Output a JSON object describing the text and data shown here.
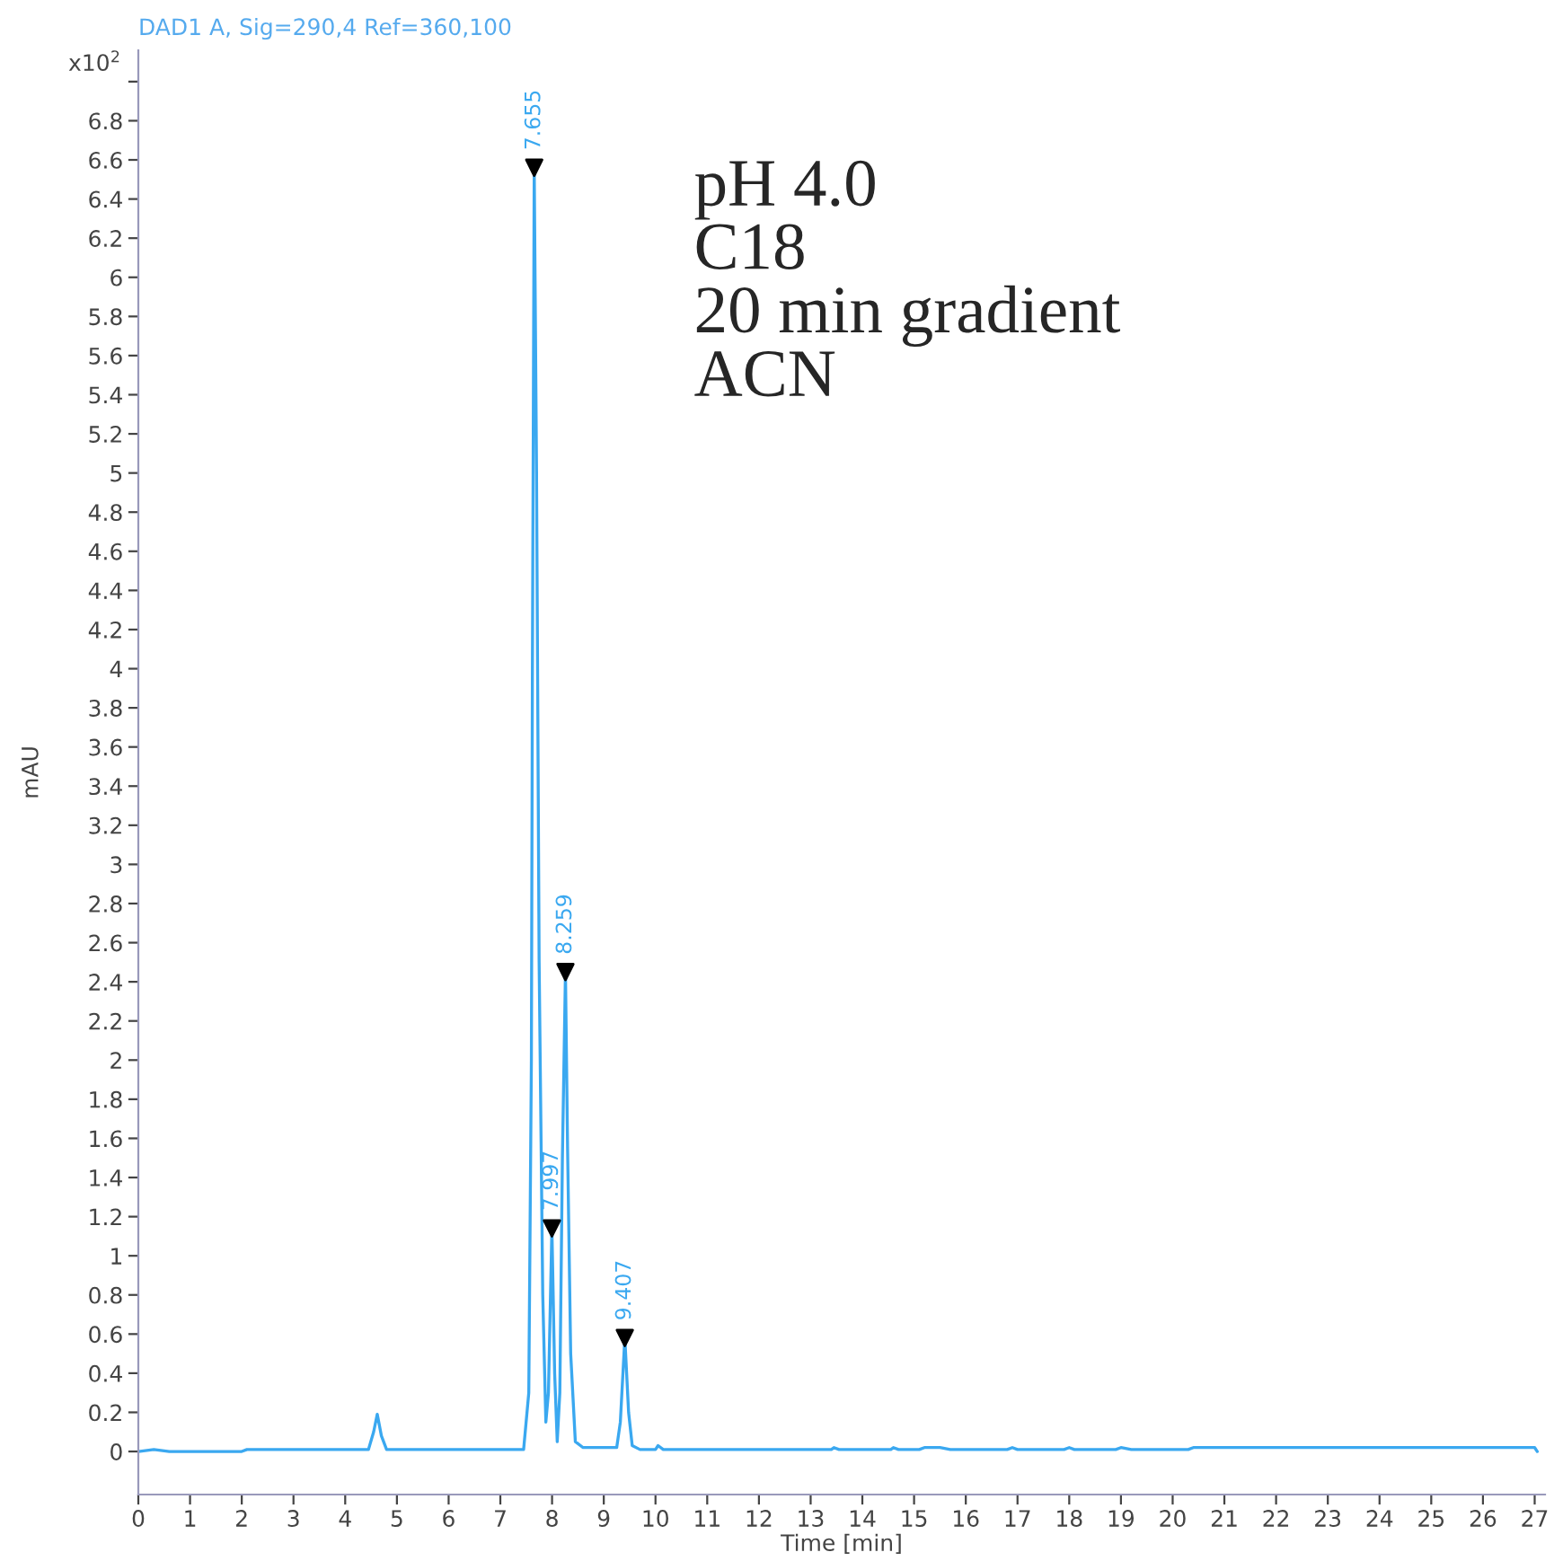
{
  "chart_data": {
    "type": "line",
    "title": "DAD1 A, Sig=290,4 Ref=360,100",
    "xlabel": "Time [min]",
    "ylabel": "mAU",
    "xlim": [
      0,
      27.2
    ],
    "ylim": [
      -0.22,
      7.16
    ],
    "xticks": [
      0,
      1,
      2,
      3,
      4,
      5,
      6,
      7,
      8,
      9,
      10,
      11,
      12,
      13,
      14,
      15,
      16,
      17,
      18,
      19,
      20,
      21,
      22,
      23,
      24,
      25,
      26,
      27
    ],
    "yticks": [
      0,
      0.2,
      0.4,
      0.6,
      0.8,
      1,
      1.2,
      1.4,
      1.6,
      1.8,
      2,
      2.2,
      2.4,
      2.6,
      2.8,
      3,
      3.2,
      3.4,
      3.6,
      3.8,
      4,
      4.2,
      4.4,
      4.6,
      4.8,
      5,
      5.2,
      5.4,
      5.6,
      5.8,
      6,
      6.2,
      6.4,
      6.6,
      6.8,
      {
        "value": 7,
        "label": null
      }
    ],
    "grid": false,
    "legend": false,
    "series": [
      {
        "color": "#3aa8f0",
        "marker": "none",
        "x": [
          0,
          0.3,
          0.6,
          2.0,
          2.1,
          4.45,
          4.55,
          4.62,
          4.7,
          4.8,
          7.45,
          7.55,
          7.6,
          7.62,
          7.655,
          7.7,
          7.75,
          7.82,
          7.88,
          7.93,
          7.997,
          8.05,
          8.1,
          8.15,
          8.2,
          8.259,
          8.3,
          8.36,
          8.45,
          8.6,
          9.25,
          9.32,
          9.407,
          9.48,
          9.55,
          9.7,
          10.0,
          10.05,
          10.15,
          13.4,
          13.45,
          13.55,
          14.55,
          14.6,
          14.7,
          15.1,
          15.2,
          15.5,
          15.7,
          15.8,
          16.8,
          16.9,
          17.0,
          17.9,
          18.0,
          18.1,
          18.9,
          19.0,
          19.2,
          20.3,
          20.4,
          23.2,
          27.0,
          27.05
        ],
        "values": [
          0.0,
          0.01,
          0.0,
          0.0,
          0.01,
          0.01,
          0.1,
          0.19,
          0.08,
          0.01,
          0.01,
          0.3,
          2.0,
          4.0,
          6.56,
          5.0,
          2.5,
          0.8,
          0.15,
          0.3,
          1.14,
          0.4,
          0.05,
          0.3,
          1.5,
          2.45,
          1.55,
          0.5,
          0.05,
          0.02,
          0.02,
          0.15,
          0.58,
          0.2,
          0.03,
          0.01,
          0.01,
          0.03,
          0.01,
          0.01,
          0.02,
          0.01,
          0.01,
          0.02,
          0.01,
          0.01,
          0.02,
          0.02,
          0.01,
          0.01,
          0.01,
          0.02,
          0.01,
          0.01,
          0.02,
          0.01,
          0.01,
          0.02,
          0.01,
          0.01,
          0.02,
          0.02,
          0.02,
          0.0
        ]
      },
      {
        "type": "scatter",
        "color": "#000000",
        "marker": "triangle",
        "x": [
          7.655,
          7.997,
          8.259,
          9.407
        ],
        "values": [
          6.56,
          1.14,
          2.45,
          0.58
        ]
      }
    ],
    "annotations": [
      {
        "text": "7.655",
        "x": 7.655,
        "y": 6.56
      },
      {
        "text": "7.997",
        "x": 7.997,
        "y": 1.14
      },
      {
        "text": "8.259",
        "x": 8.259,
        "y": 2.45
      },
      {
        "text": "9.407",
        "x": 9.407,
        "y": 0.58
      },
      "x10$^{2}$",
      "pH 4.0\nC18\n20 min gradient\nACN"
    ]
  }
}
